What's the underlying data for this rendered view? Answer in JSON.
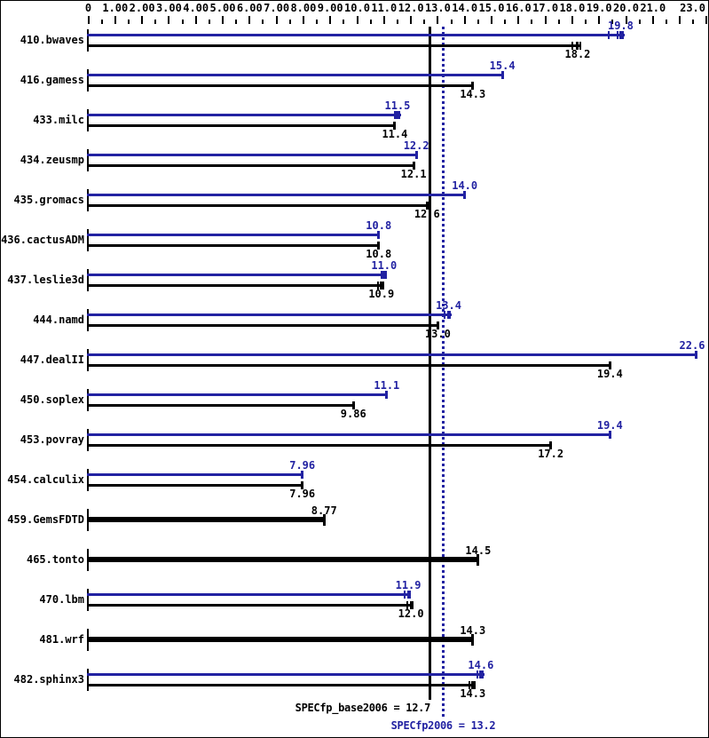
{
  "colors": {
    "peak": "#2222a2",
    "base": "#000000",
    "background": "#ffffff",
    "frame": "#000000"
  },
  "axis": {
    "position": "top",
    "min": 0,
    "max": 23,
    "minor_step": 0.5,
    "major_step": 1,
    "labels": [
      {
        "value": 0,
        "text": "0"
      },
      {
        "value": 1,
        "text": "1.00"
      },
      {
        "value": 2,
        "text": "2.00"
      },
      {
        "value": 3,
        "text": "3.00"
      },
      {
        "value": 4,
        "text": "4.00"
      },
      {
        "value": 5,
        "text": "5.00"
      },
      {
        "value": 6,
        "text": "6.00"
      },
      {
        "value": 7,
        "text": "7.00"
      },
      {
        "value": 8,
        "text": "8.00"
      },
      {
        "value": 9,
        "text": "9.00"
      },
      {
        "value": 10,
        "text": "10.0"
      },
      {
        "value": 11,
        "text": "11.0"
      },
      {
        "value": 12,
        "text": "12.0"
      },
      {
        "value": 13,
        "text": "13.0"
      },
      {
        "value": 14,
        "text": "14.0"
      },
      {
        "value": 15,
        "text": "15.0"
      },
      {
        "value": 16,
        "text": "16.0"
      },
      {
        "value": 17,
        "text": "17.0"
      },
      {
        "value": 18,
        "text": "18.0"
      },
      {
        "value": 19,
        "text": "19.0"
      },
      {
        "value": 20,
        "text": "20.0"
      },
      {
        "value": 21,
        "text": "21.0"
      },
      {
        "value": 23,
        "text": "23.0",
        "edge": true
      }
    ]
  },
  "chart_data": {
    "type": "bar",
    "orientation": "horizontal",
    "title": "",
    "xlabel": "",
    "ylabel": "",
    "xlim": [
      0,
      23.2
    ],
    "grid": false,
    "legend_position": "none",
    "categories": [
      "410.bwaves",
      "416.gamess",
      "433.milc",
      "434.zeusmp",
      "435.gromacs",
      "436.cactusADM",
      "437.leslie3d",
      "444.namd",
      "447.dealII",
      "450.soplex",
      "453.povray",
      "454.calculix",
      "459.GemsFDTD",
      "465.tonto",
      "470.lbm",
      "481.wrf",
      "482.sphinx3"
    ],
    "base_only": [
      false,
      false,
      false,
      false,
      false,
      false,
      false,
      false,
      false,
      false,
      false,
      false,
      true,
      true,
      false,
      true,
      false
    ],
    "series": [
      {
        "name": "peak",
        "color": "#2222a2",
        "values": [
          19.8,
          15.4,
          11.5,
          12.2,
          14.0,
          10.8,
          11.0,
          13.4,
          22.6,
          11.1,
          19.4,
          7.96,
          null,
          null,
          11.9,
          null,
          14.6
        ],
        "labels": [
          "19.8",
          "15.4",
          "11.5",
          "12.2",
          "14.0",
          "10.8",
          "11.0",
          "13.4",
          "22.6",
          "11.1",
          "19.4",
          "7.96",
          null,
          null,
          "11.9",
          null,
          "14.6"
        ],
        "run_marks": {
          "0": [
            -0.45,
            -0.12,
            0.1
          ],
          "2": [
            -0.1,
            0.07
          ],
          "6": [
            -0.1,
            0.06
          ],
          "7": [
            -0.16,
            0.05
          ],
          "14": [
            -0.12,
            0.06
          ],
          "16": [
            -0.12,
            0.07
          ]
        }
      },
      {
        "name": "base",
        "color": "#000000",
        "values": [
          18.2,
          14.3,
          11.4,
          12.1,
          12.6,
          10.8,
          10.9,
          13.0,
          19.4,
          9.86,
          17.2,
          7.96,
          8.77,
          14.5,
          12.0,
          14.3,
          14.3
        ],
        "labels": [
          "18.2",
          "14.3",
          "11.4",
          "12.1",
          "12.6",
          "10.8",
          "10.9",
          "13.0",
          "19.4",
          "9.86",
          "17.2",
          "7.96",
          "8.77",
          "14.5",
          "12.0",
          "14.3",
          "14.3"
        ],
        "run_marks": {
          "0": [
            -0.2,
            0.1
          ],
          "6": [
            -0.14,
            0.06
          ],
          "14": [
            -0.12,
            0.06
          ],
          "16": [
            -0.12,
            0.07
          ]
        }
      }
    ],
    "mean_lines": [
      {
        "name": "base_mean",
        "value": 12.7,
        "style": "solid",
        "color": "#000000"
      },
      {
        "name": "peak_mean",
        "value": 13.2,
        "style": "dotted",
        "color": "#2222a2"
      }
    ]
  },
  "summary": {
    "base_label": "SPECfp_base2006 = 12.7",
    "base_value": 12.7,
    "peak_label": "SPECfp2006 = 13.2",
    "peak_value": 13.2
  }
}
